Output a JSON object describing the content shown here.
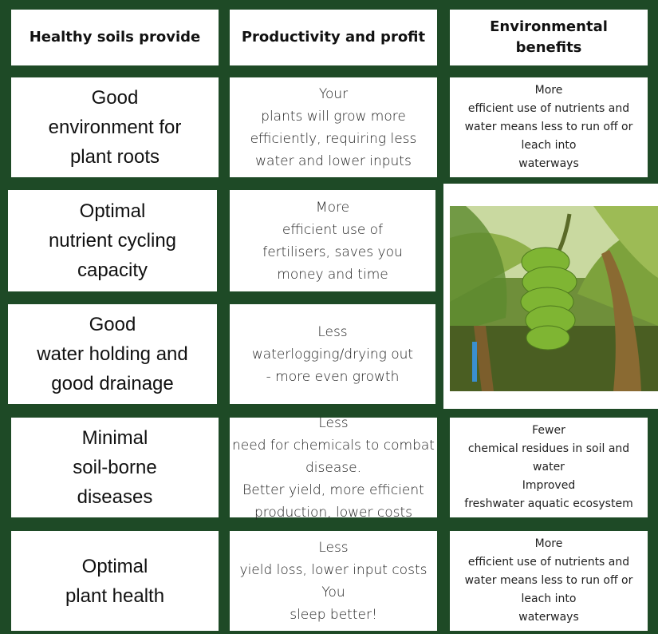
{
  "header": [
    [
      "Healthy soils provide"
    ],
    [
      "Productivity and profit"
    ],
    [
      "Environmental",
      "benefits"
    ]
  ],
  "rows": [
    [
      [
        "Good",
        "environment for",
        "plant roots"
      ],
      [
        "Your",
        "plants will grow more",
        "efficiently, requiring less",
        "water and lower inputs"
      ],
      [
        "More",
        "efficient use of nutrients and",
        "water means less to run off or",
        "leach into",
        "waterways"
      ]
    ],
    [
      [
        "Optimal",
        "nutrient cycling",
        "capacity"
      ],
      [
        "More",
        "efficient use of",
        "fertilisers, saves you",
        "money and time"
      ]
    ],
    [
      [
        "Good",
        "water holding and",
        "good drainage"
      ],
      [
        "Less",
        "waterlogging/drying out",
        "- more even growth"
      ]
    ],
    [
      [
        "Minimal",
        "soil-borne",
        "diseases"
      ],
      [
        "Less",
        "need for chemicals to combat",
        "disease.",
        "Better yield, more efficient",
        "production, lower costs"
      ],
      [
        "Fewer",
        "chemical residues in soil and",
        "water",
        "Improved",
        "freshwater aquatic ecosystem"
      ]
    ],
    [
      [
        "Optimal",
        "plant health"
      ],
      [
        "Less",
        "yield loss, lower input costs",
        "You",
        "sleep better!"
      ],
      [
        "More",
        "efficient use of nutrients and",
        "water means less to run off or",
        "leach into",
        "waterways"
      ]
    ]
  ]
}
